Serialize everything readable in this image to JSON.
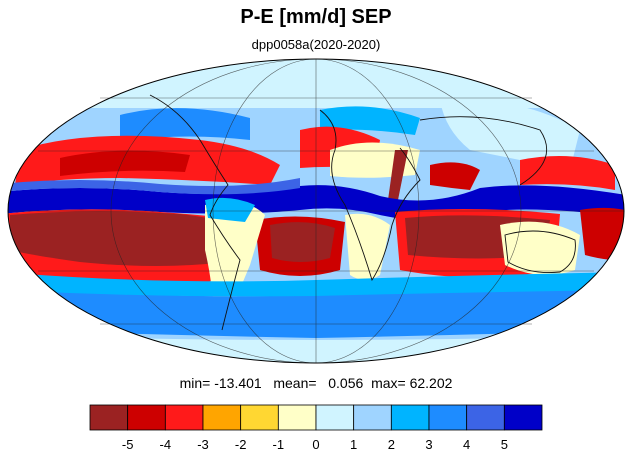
{
  "title": "P-E [mm/d] SEP",
  "subtitle": "dpp0058a(2020-2020)",
  "stats": {
    "min_label": "min=",
    "min": "-13.401",
    "mean_label": "mean=",
    "mean": "0.056",
    "max_label": "max=",
    "max": "62.202"
  },
  "colorbar": {
    "colors": [
      "#9b2222",
      "#cd0000",
      "#ff1a1a",
      "#ffa500",
      "#ffd732",
      "#ffffc8",
      "#d0f4ff",
      "#9fd4ff",
      "#00b4ff",
      "#1e8cff",
      "#3c64e6",
      "#0000c8"
    ],
    "tick_labels": [
      "-5",
      "-4",
      "-3",
      "-2",
      "-1",
      "0",
      "1",
      "2",
      "3",
      "4",
      "5"
    ]
  },
  "map": {
    "projection": "mollweide",
    "graticule": true,
    "coastlines": true
  }
}
